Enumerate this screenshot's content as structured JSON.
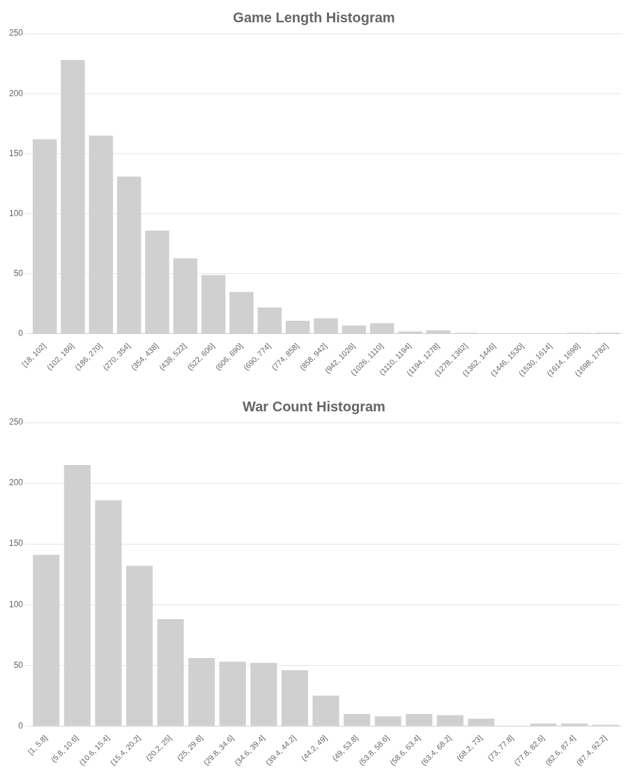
{
  "chart_data": [
    {
      "type": "bar",
      "title": "Game Length Histogram",
      "categories": [
        "[18, 102]",
        "(102, 186]",
        "(186, 270]",
        "(270, 354]",
        "(354, 438]",
        "(438, 522]",
        "(522, 606]",
        "(606, 690]",
        "(690, 774]",
        "(774, 858]",
        "(858, 942]",
        "(942, 1026]",
        "(1026, 1110]",
        "(1110, 1194]",
        "(1194, 1278]",
        "(1278, 1362]",
        "(1362, 1446]",
        "(1446, 1530]",
        "(1530, 1614]",
        "(1614, 1698]",
        "(1698, 1782]"
      ],
      "values": [
        162,
        228,
        165,
        131,
        86,
        63,
        49,
        35,
        22,
        11,
        13,
        7,
        9,
        2,
        3,
        1,
        0,
        0,
        0,
        1,
        1
      ],
      "color": "#d0d0d0",
      "ylim": [
        0,
        250
      ],
      "yticks": [
        0,
        50,
        100,
        150,
        200,
        250
      ],
      "grid": true
    },
    {
      "type": "bar",
      "title": "War Count Histogram",
      "categories": [
        "[1, 5.8]",
        "(5.8, 10.6]",
        "(10.6, 15.4]",
        "(15.4, 20.2]",
        "(20.2, 25]",
        "(25, 29.8]",
        "(29.8, 34.6]",
        "(34.6, 39.4]",
        "(39.4, 44.2]",
        "(44.2, 49]",
        "(49, 53.8]",
        "(53.8, 58.6]",
        "(58.6, 63.4]",
        "(63.4, 68.2]",
        "(68.2, 73]",
        "(73, 77.8]",
        "(77.8, 82.6]",
        "(82.6, 87.4]",
        "(87.4, 92.2]"
      ],
      "values": [
        141,
        215,
        186,
        132,
        88,
        56,
        53,
        52,
        46,
        25,
        10,
        8,
        10,
        9,
        6,
        0,
        2,
        2,
        1
      ],
      "color": "#d0d0d0",
      "ylim": [
        0,
        250
      ],
      "yticks": [
        0,
        50,
        100,
        150,
        200,
        250
      ],
      "grid": true
    }
  ]
}
